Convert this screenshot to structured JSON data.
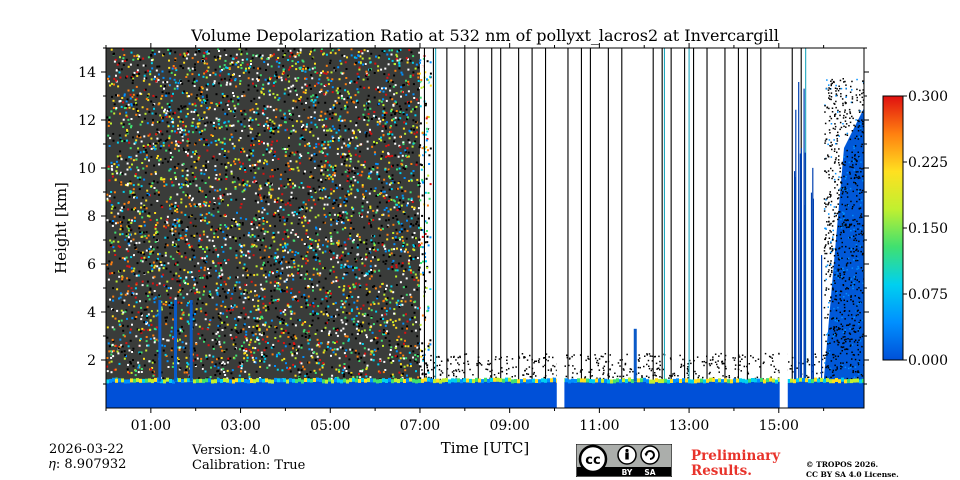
{
  "chart_data": {
    "type": "heatmap",
    "title": "Volume Depolarization Ratio at 532 nm of pollyxt_lacros2 at Invercargill",
    "xlabel": "Time [UTC]",
    "ylabel": "Height [km]",
    "xlim": [
      0,
      16.9
    ],
    "ylim": [
      0,
      15
    ],
    "x_ticks": [
      {
        "value": 1,
        "label": "01:00"
      },
      {
        "value": 3,
        "label": "03:00"
      },
      {
        "value": 5,
        "label": "05:00"
      },
      {
        "value": 7,
        "label": "07:00"
      },
      {
        "value": 9,
        "label": "09:00"
      },
      {
        "value": 11,
        "label": "11:00"
      },
      {
        "value": 13,
        "label": "13:00"
      },
      {
        "value": 15,
        "label": "15:00"
      }
    ],
    "y_ticks": [
      {
        "value": 2,
        "label": "2"
      },
      {
        "value": 4,
        "label": "4"
      },
      {
        "value": 6,
        "label": "6"
      },
      {
        "value": 8,
        "label": "8"
      },
      {
        "value": 10,
        "label": "10"
      },
      {
        "value": 12,
        "label": "12"
      },
      {
        "value": 14,
        "label": "14"
      }
    ],
    "colorbar": {
      "range": [
        0.0,
        0.3
      ],
      "colormap": [
        "#0050d8",
        "#0090ff",
        "#00d0f0",
        "#40e070",
        "#c0f030",
        "#ffe020",
        "#ff8010",
        "#e01010"
      ],
      "ticks": [
        {
          "value": 0.0,
          "label": "0.000"
        },
        {
          "value": 0.075,
          "label": "0.075"
        },
        {
          "value": 0.15,
          "label": "0.150"
        },
        {
          "value": 0.225,
          "label": "0.225"
        },
        {
          "value": 0.3,
          "label": "0.300"
        }
      ]
    },
    "regions": {
      "noisy_night_end_hour": 7.0,
      "boundary_layer_top_km": 1.1,
      "evening_aerosol_start_hour": 16.0,
      "evening_aerosol_top_km": 12.5,
      "data_gaps_hours": [
        [
          10.05,
          10.22
        ],
        [
          15.02,
          15.2
        ]
      ],
      "profile_lines_hours": [
        7.1,
        7.3,
        7.6,
        8.0,
        8.3,
        8.6,
        8.8,
        9.2,
        9.5,
        9.8,
        10.3,
        10.6,
        10.8,
        11.2,
        11.5,
        12.2,
        12.4,
        12.6,
        12.9,
        13.1,
        13.4,
        13.8,
        14.1,
        14.3,
        14.6,
        15.3,
        15.5
      ],
      "cyan_profile_lines_hours": [
        7.35,
        12.45,
        13.0,
        15.6
      ]
    }
  },
  "footer": {
    "date": "2026-03-22",
    "eta": "𝜂: 8.907932",
    "version": "Version: 4.0",
    "calibration": "Calibration: True",
    "preliminary_line1": "Preliminary",
    "preliminary_line2": "Results.",
    "license_line1": "© TROPOS 2026.",
    "license_line2": "CC BY SA 4.0 License.",
    "cc_badge_by": "BY",
    "cc_badge_sa": "SA",
    "cc_badge_cc": "cc"
  },
  "colors": {
    "preliminary": "#e8332b",
    "badge_bg": "#abaeab"
  }
}
